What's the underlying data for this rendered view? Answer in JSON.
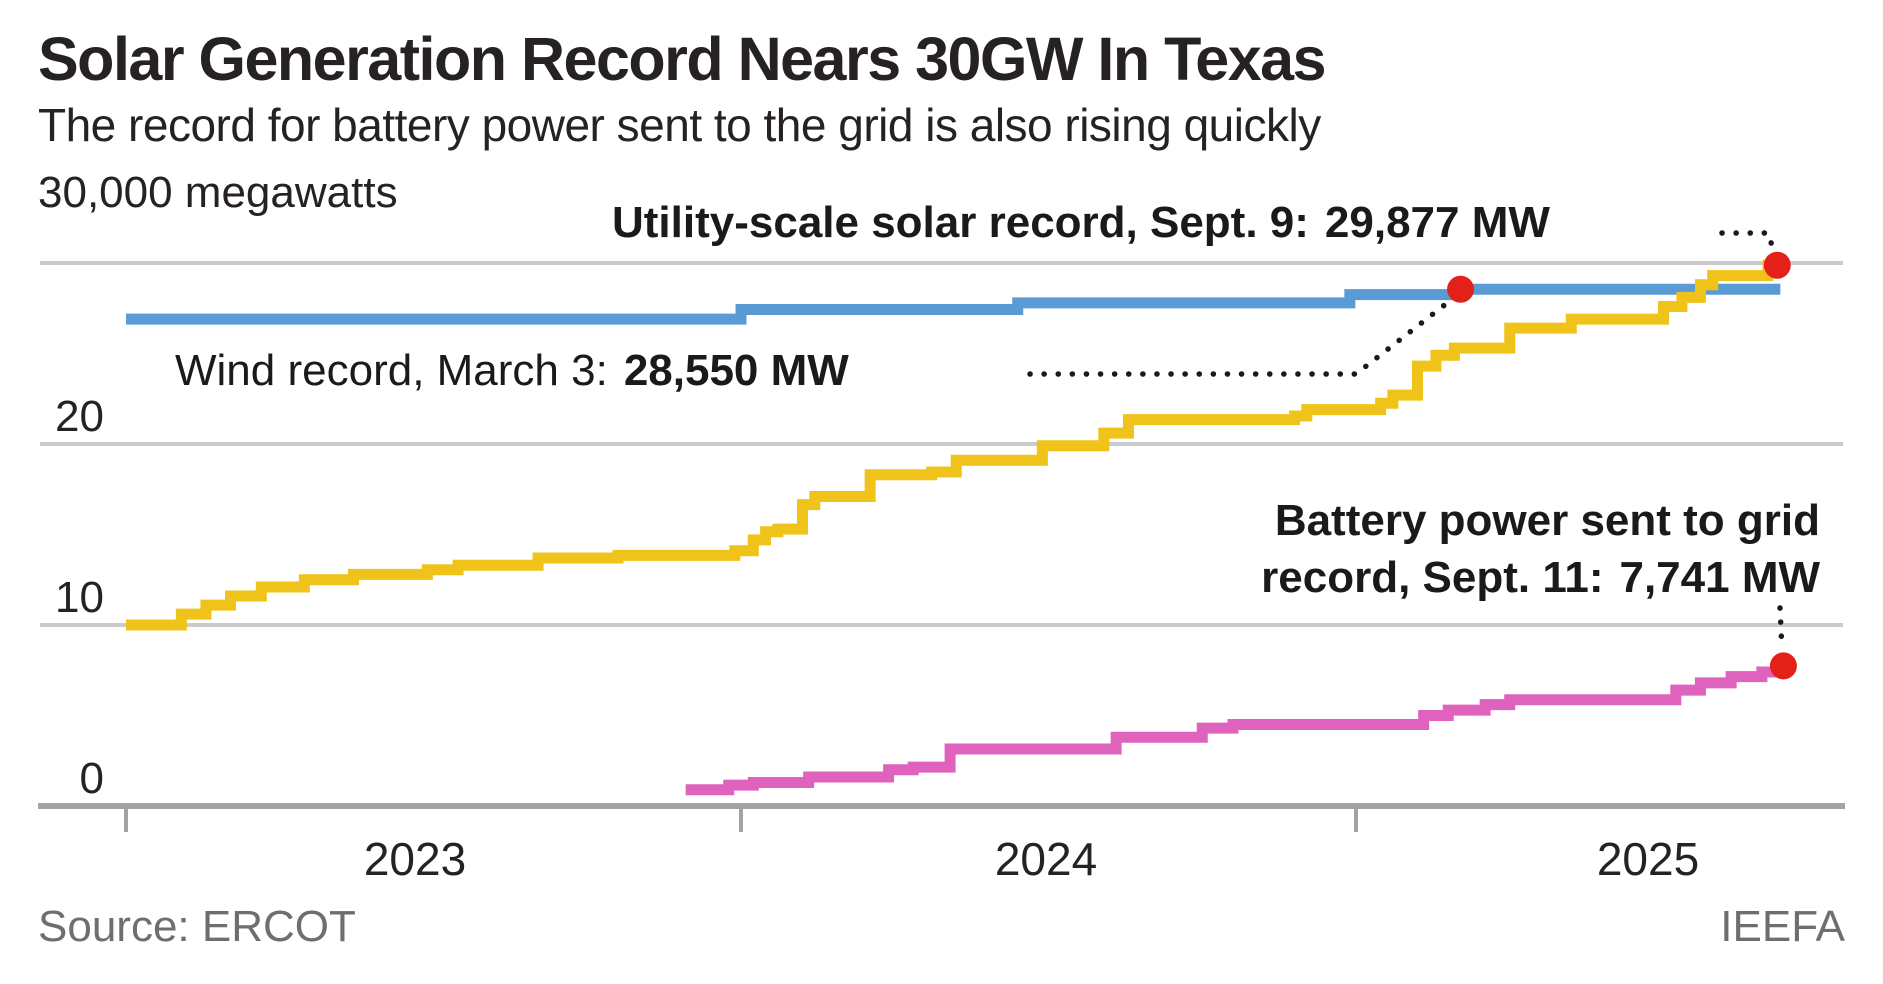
{
  "title": "Solar Generation Record Nears 30GW In Texas",
  "subtitle": "The record for battery power sent to the grid is also rising quickly",
  "y_axis": {
    "top_label": "30,000 megawatts",
    "ticks": [
      "20",
      "10",
      "0"
    ]
  },
  "x_axis": {
    "years": [
      "2023",
      "2024",
      "2025"
    ]
  },
  "annotations": {
    "solar": {
      "label": "Utility-scale solar record, Sept. 9:",
      "value": "29,877 MW"
    },
    "wind": {
      "label": "Wind record, March 3:",
      "value": "28,550 MW"
    },
    "battery": {
      "line1": "Battery power sent to grid",
      "line2_label": "record, Sept. 11:",
      "value": "7,741 MW"
    }
  },
  "source": "Source: ERCOT",
  "credit": "IEEFA",
  "colors": {
    "solar": "#EFC319",
    "wind": "#5B9BD5",
    "battery": "#DF62BD",
    "marker": "#E32119",
    "gridline": "#CBCBCB",
    "axis": "#A3A3A3",
    "leader": "#1B1919"
  },
  "chart_data": {
    "type": "line",
    "step": true,
    "title": "Solar Generation Record Nears 30GW In Texas",
    "x_unit": "year-fraction",
    "xlim": [
      2023.0,
      2025.75
    ],
    "ylim": [
      0,
      30000
    ],
    "ylabel": "megawatts",
    "grid": "horizontal",
    "gridlines_mw": [
      30000,
      20000,
      10000
    ],
    "tick_years": [
      2023,
      2024,
      2025
    ],
    "series": [
      {
        "name": "Wind record (MW)",
        "color_key": "wind",
        "points": [
          [
            2023.0,
            26900
          ],
          [
            2024.0,
            27430
          ],
          [
            2024.45,
            27800
          ],
          [
            2024.99,
            28250
          ],
          [
            2025.17,
            28550
          ]
        ],
        "end_x": 2025.69,
        "marker": {
          "x": 2025.17,
          "mw": 28550,
          "label": "Wind record, March 3: 28,550 MW"
        }
      },
      {
        "name": "Utility-scale solar record (MW)",
        "color_key": "solar",
        "points": [
          [
            2023.0,
            10000
          ],
          [
            2023.09,
            10600
          ],
          [
            2023.13,
            11100
          ],
          [
            2023.17,
            11600
          ],
          [
            2023.22,
            12100
          ],
          [
            2023.29,
            12500
          ],
          [
            2023.37,
            12800
          ],
          [
            2023.49,
            13050
          ],
          [
            2023.54,
            13300
          ],
          [
            2023.67,
            13700
          ],
          [
            2023.8,
            13850
          ],
          [
            2023.99,
            14100
          ],
          [
            2024.02,
            14700
          ],
          [
            2024.04,
            15150
          ],
          [
            2024.06,
            15300
          ],
          [
            2024.1,
            16650
          ],
          [
            2024.12,
            17100
          ],
          [
            2024.21,
            18300
          ],
          [
            2024.31,
            18450
          ],
          [
            2024.35,
            19100
          ],
          [
            2024.49,
            19900
          ],
          [
            2024.59,
            20600
          ],
          [
            2024.63,
            21350
          ],
          [
            2024.9,
            21550
          ],
          [
            2024.92,
            21900
          ],
          [
            2025.04,
            22250
          ],
          [
            2025.06,
            22700
          ],
          [
            2025.1,
            24300
          ],
          [
            2025.13,
            24900
          ],
          [
            2025.16,
            25300
          ],
          [
            2025.25,
            26400
          ],
          [
            2025.35,
            26900
          ],
          [
            2025.5,
            27600
          ],
          [
            2025.53,
            28100
          ],
          [
            2025.56,
            28800
          ],
          [
            2025.58,
            29300
          ],
          [
            2025.67,
            29877
          ]
        ],
        "end_x": 2025.69,
        "marker": {
          "x": 2025.685,
          "mw": 29877,
          "label": "Utility-scale solar record, Sept. 9: 29,877 MW"
        }
      },
      {
        "name": "Battery power sent to grid record (MW)",
        "color_key": "battery",
        "points": [
          [
            2023.91,
            900
          ],
          [
            2023.98,
            1150
          ],
          [
            2024.02,
            1300
          ],
          [
            2024.11,
            1600
          ],
          [
            2024.24,
            2000
          ],
          [
            2024.28,
            2150
          ],
          [
            2024.34,
            3150
          ],
          [
            2024.61,
            3800
          ],
          [
            2024.75,
            4300
          ],
          [
            2024.8,
            4500
          ],
          [
            2025.11,
            5000
          ],
          [
            2025.15,
            5300
          ],
          [
            2025.21,
            5600
          ],
          [
            2025.25,
            5870
          ],
          [
            2025.52,
            6400
          ],
          [
            2025.56,
            6800
          ],
          [
            2025.61,
            7150
          ],
          [
            2025.66,
            7400
          ],
          [
            2025.695,
            7741
          ]
        ],
        "end_x": 2025.7,
        "marker": {
          "x": 2025.695,
          "mw": 7741,
          "label": "Battery power sent to grid record, Sept. 11: 7,741 MW"
        }
      }
    ]
  }
}
